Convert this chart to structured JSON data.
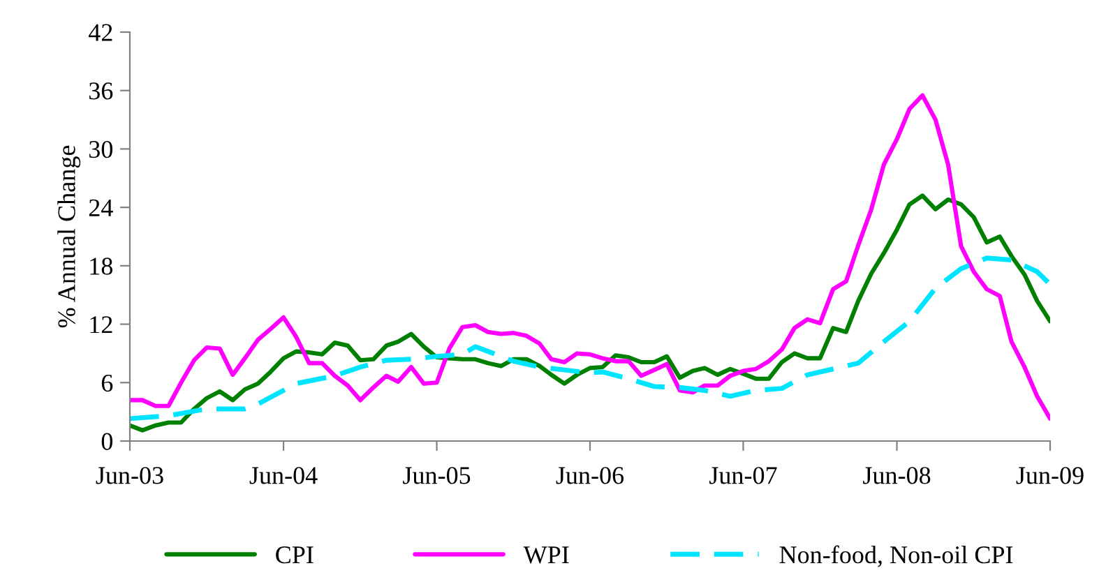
{
  "chart_data": {
    "type": "line",
    "ylabel": "% Annual Change",
    "x": [
      "2003-06",
      "2003-07",
      "2003-08",
      "2003-09",
      "2003-10",
      "2003-11",
      "2003-12",
      "2004-01",
      "2004-02",
      "2004-03",
      "2004-04",
      "2004-05",
      "2004-06",
      "2004-07",
      "2004-08",
      "2004-09",
      "2004-10",
      "2004-11",
      "2004-12",
      "2005-01",
      "2005-02",
      "2005-03",
      "2005-04",
      "2005-05",
      "2005-06",
      "2005-07",
      "2005-08",
      "2005-09",
      "2005-10",
      "2005-11",
      "2005-12",
      "2006-01",
      "2006-02",
      "2006-03",
      "2006-04",
      "2006-05",
      "2006-06",
      "2006-07",
      "2006-08",
      "2006-09",
      "2006-10",
      "2006-11",
      "2006-12",
      "2007-01",
      "2007-02",
      "2007-03",
      "2007-04",
      "2007-05",
      "2007-06",
      "2007-07",
      "2007-08",
      "2007-09",
      "2007-10",
      "2007-11",
      "2007-12",
      "2008-01",
      "2008-02",
      "2008-03",
      "2008-04",
      "2008-05",
      "2008-06",
      "2008-07",
      "2008-08",
      "2008-09",
      "2008-10",
      "2008-11",
      "2008-12",
      "2009-01",
      "2009-02",
      "2009-03",
      "2009-04",
      "2009-05",
      "2009-06"
    ],
    "series": [
      {
        "name": "CPI",
        "color": "#008000",
        "line_style": "solid",
        "values": [
          1.6,
          1.1,
          1.6,
          1.9,
          1.9,
          3.3,
          4.4,
          5.1,
          4.2,
          5.3,
          5.9,
          7.1,
          8.5,
          9.2,
          9.1,
          8.9,
          10.1,
          9.8,
          8.3,
          8.4,
          9.8,
          10.2,
          11.0,
          9.7,
          8.6,
          8.5,
          8.4,
          8.4,
          8.0,
          7.7,
          8.4,
          8.4,
          7.7,
          6.8,
          5.9,
          6.8,
          7.5,
          7.6,
          8.8,
          8.6,
          8.1,
          8.1,
          8.7,
          6.5,
          7.2,
          7.5,
          6.8,
          7.4,
          6.9,
          6.4,
          6.4,
          8.1,
          9.0,
          8.5,
          8.5,
          11.6,
          11.2,
          14.4,
          17.2,
          19.3,
          21.7,
          24.3,
          25.2,
          23.8,
          24.8,
          24.3,
          23.0,
          20.4,
          21.0,
          19.0,
          17.1,
          14.4,
          12.3
        ]
      },
      {
        "name": "WPI",
        "color": "#ff00ff",
        "line_style": "solid",
        "values": [
          4.2,
          4.2,
          3.6,
          3.6,
          6.0,
          8.3,
          9.6,
          9.5,
          6.8,
          8.5,
          10.4,
          11.5,
          12.7,
          10.7,
          8.0,
          8.0,
          6.7,
          5.7,
          4.2,
          5.5,
          6.7,
          6.1,
          7.6,
          5.9,
          6.0,
          9.5,
          11.7,
          11.9,
          11.2,
          11.0,
          11.1,
          10.8,
          10.0,
          8.4,
          8.1,
          9.0,
          8.9,
          8.5,
          8.2,
          8.2,
          6.7,
          7.3,
          7.9,
          5.2,
          5.0,
          5.7,
          5.7,
          6.7,
          7.2,
          7.4,
          8.2,
          9.4,
          11.6,
          12.5,
          12.1,
          15.6,
          16.4,
          20.1,
          23.8,
          28.4,
          31.0,
          34.1,
          35.5,
          33.0,
          28.4,
          20.0,
          17.4,
          15.6,
          14.9,
          10.2,
          7.6,
          4.6,
          2.3
        ]
      },
      {
        "name": "Non-food, Non-oil CPI",
        "color": "#00e5ff",
        "line_style": "dashed",
        "x": [
          "2003-06",
          "2003-09",
          "2003-12",
          "2004-03",
          "2004-04",
          "2004-07",
          "2004-10",
          "2004-12",
          "2005-02",
          "2005-04",
          "2005-06",
          "2005-08",
          "2005-09",
          "2005-12",
          "2006-02",
          "2006-04",
          "2006-06",
          "2006-07",
          "2006-09",
          "2006-11",
          "2007-01",
          "2007-03",
          "2007-05",
          "2007-07",
          "2007-09",
          "2007-11",
          "2008-01",
          "2008-03",
          "2008-05",
          "2008-07",
          "2008-09",
          "2008-11",
          "2009-01",
          "2009-03",
          "2009-05",
          "2009-06"
        ],
        "values": [
          2.3,
          2.6,
          3.3,
          3.3,
          3.8,
          5.9,
          6.7,
          7.6,
          8.3,
          8.4,
          8.7,
          8.9,
          9.7,
          8.2,
          7.6,
          7.3,
          7.0,
          7.1,
          6.4,
          5.6,
          5.5,
          5.2,
          4.6,
          5.2,
          5.4,
          6.8,
          7.4,
          8.0,
          10.2,
          12.3,
          15.7,
          17.7,
          18.8,
          18.6,
          17.4,
          16.1
        ]
      }
    ],
    "xlim": [
      "2003-06",
      "2009-06"
    ],
    "xticks": [
      {
        "value": "2003-06",
        "label": "Jun-03"
      },
      {
        "value": "2004-06",
        "label": "Jun-04"
      },
      {
        "value": "2005-06",
        "label": "Jun-05"
      },
      {
        "value": "2006-06",
        "label": "Jun-06"
      },
      {
        "value": "2007-06",
        "label": "Jun-07"
      },
      {
        "value": "2008-06",
        "label": "Jun-08"
      },
      {
        "value": "2009-06",
        "label": "Jun-09"
      }
    ],
    "ylim": [
      0,
      42
    ],
    "yticks": [
      0,
      6,
      12,
      18,
      24,
      30,
      36,
      42
    ],
    "legend": "bottom",
    "grid": false
  }
}
